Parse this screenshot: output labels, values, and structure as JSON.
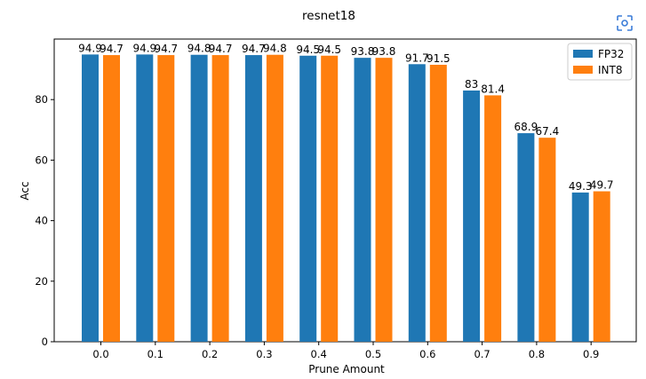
{
  "chart_data": {
    "type": "bar",
    "title": "resnet18",
    "xlabel": "Prune Amount",
    "ylabel": "Acc",
    "categories": [
      "0.0",
      "0.1",
      "0.2",
      "0.3",
      "0.4",
      "0.5",
      "0.6",
      "0.7",
      "0.8",
      "0.9"
    ],
    "series": [
      {
        "name": "FP32",
        "color": "#1f77b4",
        "values": [
          94.9,
          94.9,
          94.8,
          94.7,
          94.5,
          93.8,
          91.7,
          83,
          68.9,
          49.3
        ]
      },
      {
        "name": "INT8",
        "color": "#ff7f0e",
        "values": [
          94.7,
          94.7,
          94.7,
          94.8,
          94.5,
          93.8,
          91.5,
          81.4,
          67.4,
          49.7
        ]
      }
    ],
    "ylim": [
      0,
      100
    ],
    "yticks": [
      0,
      20,
      40,
      60,
      80
    ],
    "grid": false,
    "legend_position": "top-right"
  },
  "toolbar": {
    "fit_icon": "fit-to-view-icon"
  }
}
